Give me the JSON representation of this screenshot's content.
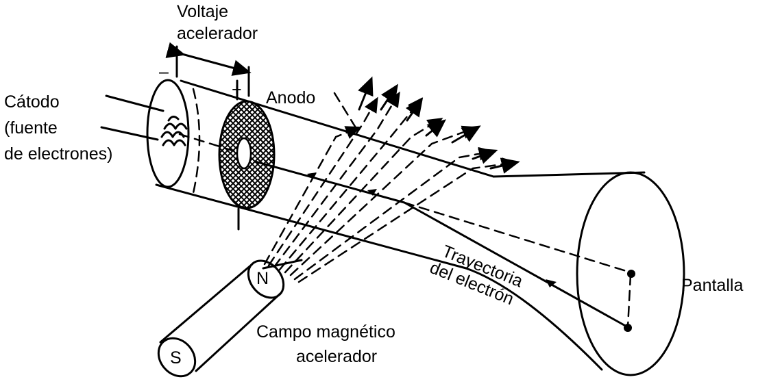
{
  "labels": {
    "voltaje_line1": "Voltaje",
    "voltaje_line2": "acelerador",
    "minus_sign": "–",
    "plus_sign": "+",
    "anodo": "Anodo",
    "catodo_line1": "Cátodo",
    "catodo_line2": "(fuente",
    "catodo_line3": "de electrones)",
    "trayectoria_line1": "Trayectoria",
    "trayectoria_line2": "del electrón",
    "pantalla": "Pantalla",
    "campo_line1": "Campo magnético",
    "campo_line2": "acelerador",
    "pole_n": "N",
    "pole_s": "S"
  },
  "colors": {
    "ink": "#000000",
    "background": "#ffffff"
  }
}
